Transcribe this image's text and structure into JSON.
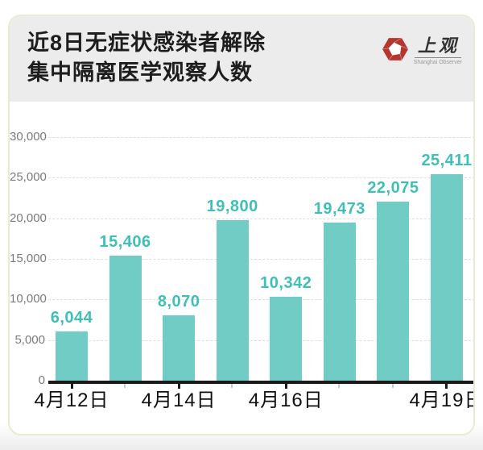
{
  "header": {
    "title_line1": "近8日无症状感染者解除",
    "title_line2": "集中隔离医学观察人数",
    "logo": {
      "brand": "上观",
      "subbrand": "Shanghai Observer",
      "icon_color": "#b5362e"
    }
  },
  "chart_data": {
    "type": "bar",
    "title": "近8日无症状感染者解除集中隔离医学观察人数",
    "bars": [
      {
        "value": 6044,
        "label": "6,044"
      },
      {
        "value": 15406,
        "label": "15,406"
      },
      {
        "value": 8070,
        "label": "8,070"
      },
      {
        "value": 19800,
        "label": "19,800"
      },
      {
        "value": 10342,
        "label": "10,342"
      },
      {
        "value": 19473,
        "label": "19,473"
      },
      {
        "value": 22075,
        "label": "22,075"
      },
      {
        "value": 25411,
        "label": "25,411"
      }
    ],
    "x_tick_labels": [
      {
        "bar_index": 0,
        "label": "4月12日"
      },
      {
        "bar_index": 2,
        "label": "4月14日"
      },
      {
        "bar_index": 4,
        "label": "4月16日"
      },
      {
        "bar_index": 7,
        "label": "4月19日"
      }
    ],
    "y_ticks": [
      {
        "value": 0,
        "label": "0"
      },
      {
        "value": 5000,
        "label": "5,000"
      },
      {
        "value": 10000,
        "label": "10,000"
      },
      {
        "value": 15000,
        "label": "15,000"
      },
      {
        "value": 20000,
        "label": "20,000"
      },
      {
        "value": 25000,
        "label": "25,000"
      },
      {
        "value": 30000,
        "label": "30,000"
      }
    ],
    "ylim": [
      0,
      30000
    ],
    "grid": "horizontal-dashed",
    "bar_color": "#71ccc5",
    "value_label_color": "#3fbfb7",
    "axis_color": "#1a1a1a",
    "minor_tick_color": "#c9c9c9"
  }
}
